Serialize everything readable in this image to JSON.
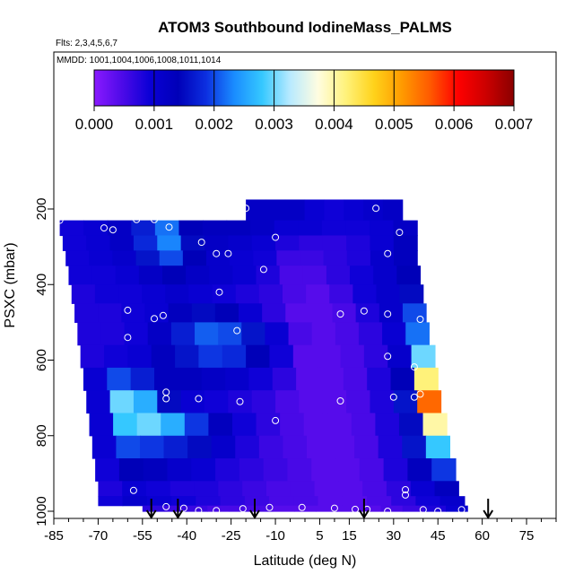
{
  "chart_data": {
    "type": "heatmap",
    "title": "ATOM3 Southbound IodineMass_PALMS",
    "subtitle_flights": "Flts: 2,3,4,5,6,7",
    "subtitle_dates": "MMDD: 1001,1004,1006,1008,1011,1014",
    "xlabel": "Latitude (deg N)",
    "ylabel": "PSXC (mbar)",
    "xlim": [
      -85,
      85
    ],
    "ylim": [
      1000,
      0
    ],
    "x_ticks": [
      -85,
      -70,
      -55,
      -40,
      -25,
      -10,
      5,
      15,
      30,
      45,
      60,
      75
    ],
    "y_ticks": [
      200,
      400,
      600,
      800,
      1000
    ],
    "colorbar": {
      "min": 0,
      "max": 0.007,
      "tick_labels": [
        "0.000",
        "0.001",
        "0.002",
        "0.003",
        "0.004",
        "0.005",
        "0.006",
        "0.007"
      ],
      "colors": [
        "#8a1aff",
        "#4d0ae8",
        "#0a00d6",
        "#0000b8",
        "#0c2fe0",
        "#1a8cff",
        "#35c8ff",
        "#b8eaff",
        "#fffde0",
        "#fff27a",
        "#ffd21a",
        "#ff9a00",
        "#ff5a00",
        "#ff0000",
        "#cc0000",
        "#8a0000"
      ]
    },
    "arrow_latitudes": [
      -52,
      -43,
      -17,
      20,
      62
    ],
    "layers": [
      {
        "p_top": 175,
        "p_bot": 240,
        "lat_min": -20,
        "lat_max": 33,
        "values": [
          0.0012,
          0.0012,
          0.0012,
          0.001,
          0.0009,
          0.001,
          0.0011,
          0.0012
        ]
      },
      {
        "p_top": 230,
        "p_bot": 270,
        "lat_min": -83,
        "lat_max": 38,
        "values": [
          0.0009,
          0.001,
          0.0012,
          0.0017,
          0.0022,
          0.0014,
          0.0013,
          0.0013,
          0.0012,
          0.001,
          0.001,
          0.0009,
          0.0009,
          0.001,
          0.0012
        ]
      },
      {
        "p_top": 270,
        "p_bot": 310,
        "lat_min": -82,
        "lat_max": 38,
        "values": [
          0.0009,
          0.001,
          0.0012,
          0.0018,
          0.0023,
          0.0015,
          0.0012,
          0.0011,
          0.001,
          0.0008,
          0.0007,
          0.0007,
          0.0008,
          0.001,
          0.0013
        ]
      },
      {
        "p_top": 310,
        "p_bot": 350,
        "lat_min": -81,
        "lat_max": 38,
        "values": [
          0.0009,
          0.001,
          0.0011,
          0.0016,
          0.002,
          0.0014,
          0.0011,
          0.001,
          0.0009,
          0.0006,
          0.0006,
          0.0007,
          0.0008,
          0.0011,
          0.0013
        ]
      },
      {
        "p_top": 350,
        "p_bot": 400,
        "lat_min": -80,
        "lat_max": 39,
        "values": [
          0.0009,
          0.0009,
          0.001,
          0.0012,
          0.0014,
          0.0012,
          0.0011,
          0.001,
          0.0008,
          0.0005,
          0.0005,
          0.0007,
          0.0009,
          0.0011,
          0.0014
        ]
      },
      {
        "p_top": 400,
        "p_bot": 450,
        "lat_min": -79,
        "lat_max": 40,
        "values": [
          0.0008,
          0.0009,
          0.0009,
          0.001,
          0.0011,
          0.001,
          0.0009,
          0.0008,
          0.0007,
          0.0005,
          0.0004,
          0.0006,
          0.0009,
          0.0011,
          0.0015
        ]
      },
      {
        "p_top": 450,
        "p_bot": 500,
        "lat_min": -78,
        "lat_max": 41,
        "values": [
          0.0008,
          0.0008,
          0.0009,
          0.001,
          0.0013,
          0.0015,
          0.0014,
          0.001,
          0.0007,
          0.0004,
          0.0004,
          0.0005,
          0.0008,
          0.0011,
          0.002
        ]
      },
      {
        "p_top": 500,
        "p_bot": 560,
        "lat_min": -77,
        "lat_max": 42,
        "values": [
          0.0008,
          0.0008,
          0.0009,
          0.0012,
          0.0017,
          0.0021,
          0.002,
          0.0016,
          0.001,
          0.0005,
          0.0004,
          0.0005,
          0.0007,
          0.001,
          0.0022
        ]
      },
      {
        "p_top": 560,
        "p_bot": 620,
        "lat_min": -76,
        "lat_max": 44,
        "values": [
          0.0008,
          0.0009,
          0.001,
          0.0013,
          0.0016,
          0.0019,
          0.0018,
          0.0014,
          0.0009,
          0.0004,
          0.0004,
          0.0005,
          0.0007,
          0.0011,
          0.003
        ]
      },
      {
        "p_top": 620,
        "p_bot": 680,
        "lat_min": -75,
        "lat_max": 45,
        "values": [
          0.001,
          0.002,
          0.0017,
          0.0013,
          0.0013,
          0.0012,
          0.0011,
          0.0009,
          0.0007,
          0.0004,
          0.0004,
          0.0005,
          0.0008,
          0.0014,
          0.0042
        ]
      },
      {
        "p_top": 680,
        "p_bot": 740,
        "lat_min": -74,
        "lat_max": 46,
        "values": [
          0.001,
          0.003,
          0.0026,
          0.0015,
          0.001,
          0.0009,
          0.0008,
          0.0007,
          0.0005,
          0.0004,
          0.0004,
          0.0005,
          0.0008,
          0.0016,
          0.0055
        ]
      },
      {
        "p_top": 740,
        "p_bot": 800,
        "lat_min": -73,
        "lat_max": 48,
        "values": [
          0.001,
          0.0028,
          0.003,
          0.0026,
          0.0019,
          0.0013,
          0.0009,
          0.0007,
          0.0005,
          0.0004,
          0.0004,
          0.0005,
          0.0008,
          0.0015,
          0.004
        ]
      },
      {
        "p_top": 800,
        "p_bot": 860,
        "lat_min": -72,
        "lat_max": 49,
        "values": [
          0.001,
          0.002,
          0.0019,
          0.0017,
          0.0015,
          0.0011,
          0.0008,
          0.0006,
          0.0005,
          0.0004,
          0.0004,
          0.0005,
          0.0008,
          0.0016,
          0.0028
        ]
      },
      {
        "p_top": 860,
        "p_bot": 920,
        "lat_min": -71,
        "lat_max": 51,
        "values": [
          0.0009,
          0.0014,
          0.0013,
          0.0011,
          0.001,
          0.0008,
          0.0007,
          0.0006,
          0.0005,
          0.0004,
          0.0004,
          0.0005,
          0.0008,
          0.0013,
          0.0019
        ]
      },
      {
        "p_top": 920,
        "p_bot": 960,
        "lat_min": -70,
        "lat_max": 52,
        "values": [
          0.0008,
          0.001,
          0.0009,
          0.0008,
          0.0008,
          0.0007,
          0.0006,
          0.0005,
          0.0005,
          0.0004,
          0.0004,
          0.0005,
          0.0007,
          0.001,
          0.0013
        ]
      },
      {
        "p_top": 960,
        "p_bot": 985,
        "lat_min": -70,
        "lat_max": 54,
        "values": [
          0.0009,
          0.0011,
          0.001,
          0.0009,
          0.0008,
          0.0007,
          0.0006,
          0.0005,
          0.0005,
          0.0004,
          0.0004,
          0.0005,
          0.0007,
          0.0009,
          0.0011
        ]
      },
      {
        "p_top": 985,
        "p_bot": 1000,
        "lat_min": -55,
        "lat_max": 55,
        "values": [
          0.0007,
          0.0006,
          0.0006,
          0.0005,
          0.0005,
          0.0005,
          0.0004,
          0.0004,
          0.0004,
          0.0004,
          0.0004,
          0.0005,
          0.0006,
          0.0008,
          0.001
        ]
      }
    ],
    "sample_points": [
      {
        "lat": -83,
        "p": 230
      },
      {
        "lat": -68,
        "p": 250
      },
      {
        "lat": -65,
        "p": 255
      },
      {
        "lat": -57,
        "p": 228
      },
      {
        "lat": -51,
        "p": 228
      },
      {
        "lat": -46,
        "p": 248
      },
      {
        "lat": -35,
        "p": 288
      },
      {
        "lat": -30,
        "p": 318
      },
      {
        "lat": -26,
        "p": 318
      },
      {
        "lat": -20,
        "p": 198
      },
      {
        "lat": -14,
        "p": 360
      },
      {
        "lat": -10,
        "p": 275
      },
      {
        "lat": -29,
        "p": 420
      },
      {
        "lat": 24,
        "p": 198
      },
      {
        "lat": 32,
        "p": 262
      },
      {
        "lat": 28,
        "p": 318
      },
      {
        "lat": 39,
        "p": 492
      },
      {
        "lat": 20,
        "p": 470
      },
      {
        "lat": 28,
        "p": 478
      },
      {
        "lat": 12,
        "p": 478
      },
      {
        "lat": -81,
        "p": 495
      },
      {
        "lat": -60,
        "p": 468
      },
      {
        "lat": -60,
        "p": 540
      },
      {
        "lat": -51,
        "p": 490
      },
      {
        "lat": -48,
        "p": 482
      },
      {
        "lat": -23,
        "p": 522
      },
      {
        "lat": 28,
        "p": 590
      },
      {
        "lat": 37,
        "p": 618
      },
      {
        "lat": 30,
        "p": 698
      },
      {
        "lat": 37,
        "p": 698
      },
      {
        "lat": 39,
        "p": 690
      },
      {
        "lat": -47,
        "p": 685
      },
      {
        "lat": -47,
        "p": 702
      },
      {
        "lat": -36,
        "p": 702
      },
      {
        "lat": -22,
        "p": 710
      },
      {
        "lat": 12,
        "p": 708
      },
      {
        "lat": -10,
        "p": 760
      },
      {
        "lat": -73,
        "p": 955
      },
      {
        "lat": -58,
        "p": 945
      },
      {
        "lat": 34,
        "p": 943
      },
      {
        "lat": 34,
        "p": 957
      },
      {
        "lat": -47,
        "p": 988
      },
      {
        "lat": -41,
        "p": 992
      },
      {
        "lat": -36,
        "p": 998
      },
      {
        "lat": -30,
        "p": 998
      },
      {
        "lat": -21,
        "p": 993
      },
      {
        "lat": -12,
        "p": 990
      },
      {
        "lat": -1,
        "p": 990
      },
      {
        "lat": 10,
        "p": 992
      },
      {
        "lat": 17,
        "p": 995
      },
      {
        "lat": 21,
        "p": 995
      },
      {
        "lat": 28,
        "p": 1000
      },
      {
        "lat": 40,
        "p": 996
      },
      {
        "lat": 45,
        "p": 1000
      },
      {
        "lat": 53,
        "p": 996
      }
    ]
  }
}
